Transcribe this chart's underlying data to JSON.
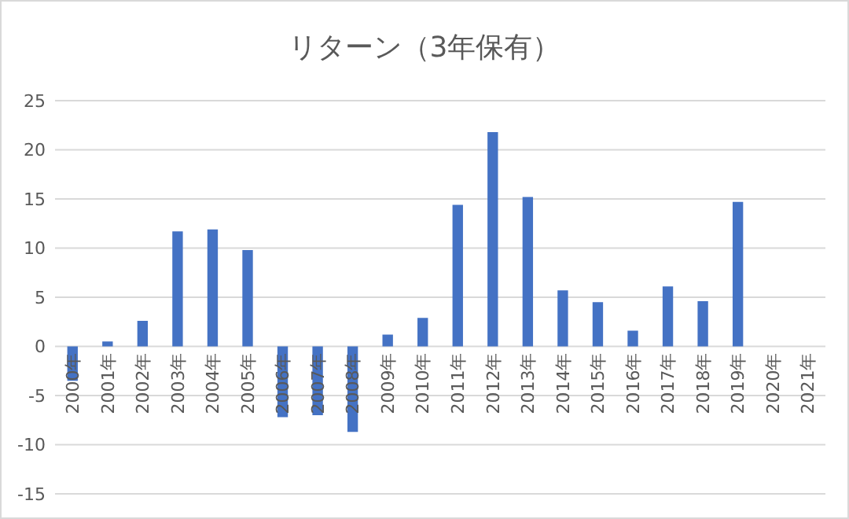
{
  "chart_data": {
    "type": "bar",
    "title": "リターン（3年保有）",
    "categories": [
      "2000年",
      "2001年",
      "2002年",
      "2003年",
      "2004年",
      "2005年",
      "2006年",
      "2007年",
      "2008年",
      "2009年",
      "2010年",
      "2011年",
      "2012年",
      "2013年",
      "2014年",
      "2015年",
      "2016年",
      "2017年",
      "2018年",
      "2019年",
      "2020年",
      "2021年"
    ],
    "values": [
      -3.5,
      0.5,
      2.6,
      11.7,
      11.9,
      9.8,
      -7.2,
      -7.0,
      -8.7,
      1.2,
      2.9,
      14.4,
      21.8,
      15.2,
      5.7,
      4.5,
      1.6,
      6.1,
      4.6,
      14.7,
      null,
      null
    ],
    "color": "#4472c4",
    "ylim": [
      -15,
      25
    ],
    "yticks": [
      -15,
      -10,
      -5,
      0,
      5,
      10,
      15,
      20,
      25
    ],
    "grid": "y"
  }
}
